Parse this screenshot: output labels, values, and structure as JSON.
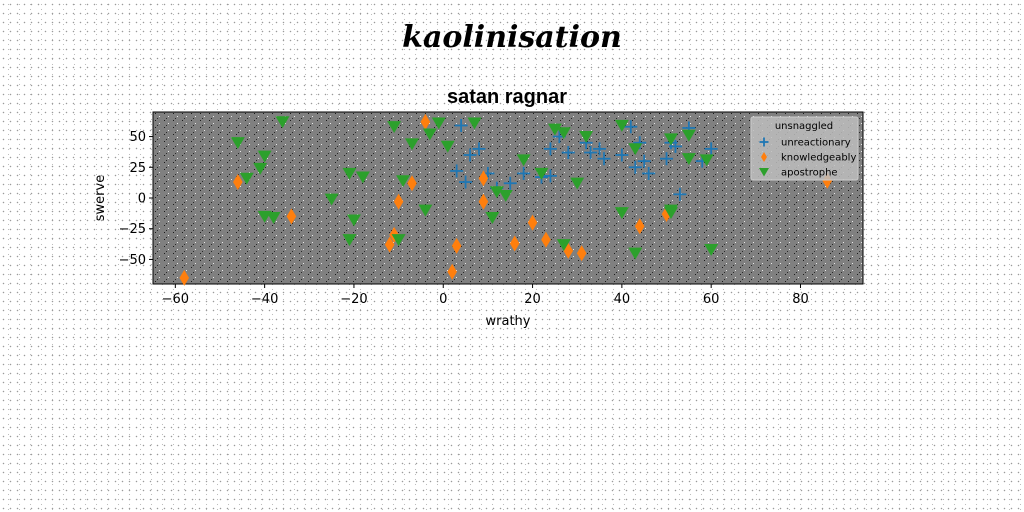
{
  "suptitle": "kaolinisation",
  "chart_data": {
    "type": "scatter",
    "title": "satan ragnar",
    "xlabel": "wrathy",
    "ylabel": "swerve",
    "xlim": [
      -65,
      94
    ],
    "ylim": [
      -70,
      70
    ],
    "xticks": [
      -60,
      -40,
      -20,
      0,
      20,
      40,
      60,
      80
    ],
    "yticks": [
      -50,
      -25,
      0,
      25,
      50
    ],
    "grid": false,
    "legend": {
      "title": "unsnaggled",
      "position": "top-right"
    },
    "series": [
      {
        "name": "unreactionary",
        "marker": "plus",
        "color": "#1f77b4",
        "points": [
          [
            4,
            59
          ],
          [
            6,
            35
          ],
          [
            8,
            40
          ],
          [
            10,
            20
          ],
          [
            12,
            8
          ],
          [
            15,
            12
          ],
          [
            18,
            20
          ],
          [
            22,
            17
          ],
          [
            24,
            40
          ],
          [
            26,
            50
          ],
          [
            28,
            37
          ],
          [
            32,
            45
          ],
          [
            33,
            37
          ],
          [
            35,
            40
          ],
          [
            36,
            32
          ],
          [
            40,
            35
          ],
          [
            42,
            58
          ],
          [
            43,
            25
          ],
          [
            44,
            45
          ],
          [
            45,
            30
          ],
          [
            46,
            20
          ],
          [
            50,
            32
          ],
          [
            51,
            45
          ],
          [
            52,
            42
          ],
          [
            53,
            3
          ],
          [
            55,
            57
          ],
          [
            58,
            30
          ],
          [
            60,
            40
          ],
          [
            3,
            22
          ],
          [
            5,
            13
          ],
          [
            24,
            18
          ]
        ]
      },
      {
        "name": "knowledgeably",
        "marker": "diamond",
        "color": "#ff7f0e",
        "points": [
          [
            -58,
            -65
          ],
          [
            -46,
            13
          ],
          [
            -34,
            -15
          ],
          [
            -12,
            -38
          ],
          [
            -11,
            -30
          ],
          [
            -10,
            -3
          ],
          [
            -7,
            12
          ],
          [
            -4,
            62
          ],
          [
            2,
            -60
          ],
          [
            3,
            -39
          ],
          [
            9,
            16
          ],
          [
            9,
            -3
          ],
          [
            16,
            -37
          ],
          [
            20,
            -20
          ],
          [
            23,
            -34
          ],
          [
            28,
            -43
          ],
          [
            31,
            -45
          ],
          [
            44,
            -23
          ],
          [
            50,
            -13
          ],
          [
            86,
            14
          ]
        ]
      },
      {
        "name": "apostrophe",
        "marker": "triangle-down",
        "color": "#2ca02c",
        "points": [
          [
            -46,
            45
          ],
          [
            -44,
            16
          ],
          [
            -41,
            24
          ],
          [
            -40,
            34
          ],
          [
            -40,
            -15
          ],
          [
            -38,
            -16
          ],
          [
            -36,
            62
          ],
          [
            -25,
            -1
          ],
          [
            -21,
            20
          ],
          [
            -21,
            -34
          ],
          [
            -20,
            -18
          ],
          [
            -18,
            17
          ],
          [
            -11,
            58
          ],
          [
            -9,
            14
          ],
          [
            -10,
            -34
          ],
          [
            -7,
            44
          ],
          [
            -4,
            -10
          ],
          [
            -3,
            52
          ],
          [
            -1,
            61
          ],
          [
            1,
            42
          ],
          [
            7,
            61
          ],
          [
            11,
            -16
          ],
          [
            12,
            5
          ],
          [
            14,
            2
          ],
          [
            18,
            31
          ],
          [
            22,
            20
          ],
          [
            25,
            56
          ],
          [
            27,
            53
          ],
          [
            27,
            -38
          ],
          [
            30,
            12
          ],
          [
            32,
            50
          ],
          [
            40,
            -12
          ],
          [
            40,
            59
          ],
          [
            43,
            -45
          ],
          [
            43,
            40
          ],
          [
            51,
            48
          ],
          [
            51,
            -10
          ],
          [
            51,
            -12
          ],
          [
            55,
            32
          ],
          [
            55,
            51
          ],
          [
            59,
            31
          ],
          [
            60,
            -42
          ]
        ]
      }
    ]
  }
}
